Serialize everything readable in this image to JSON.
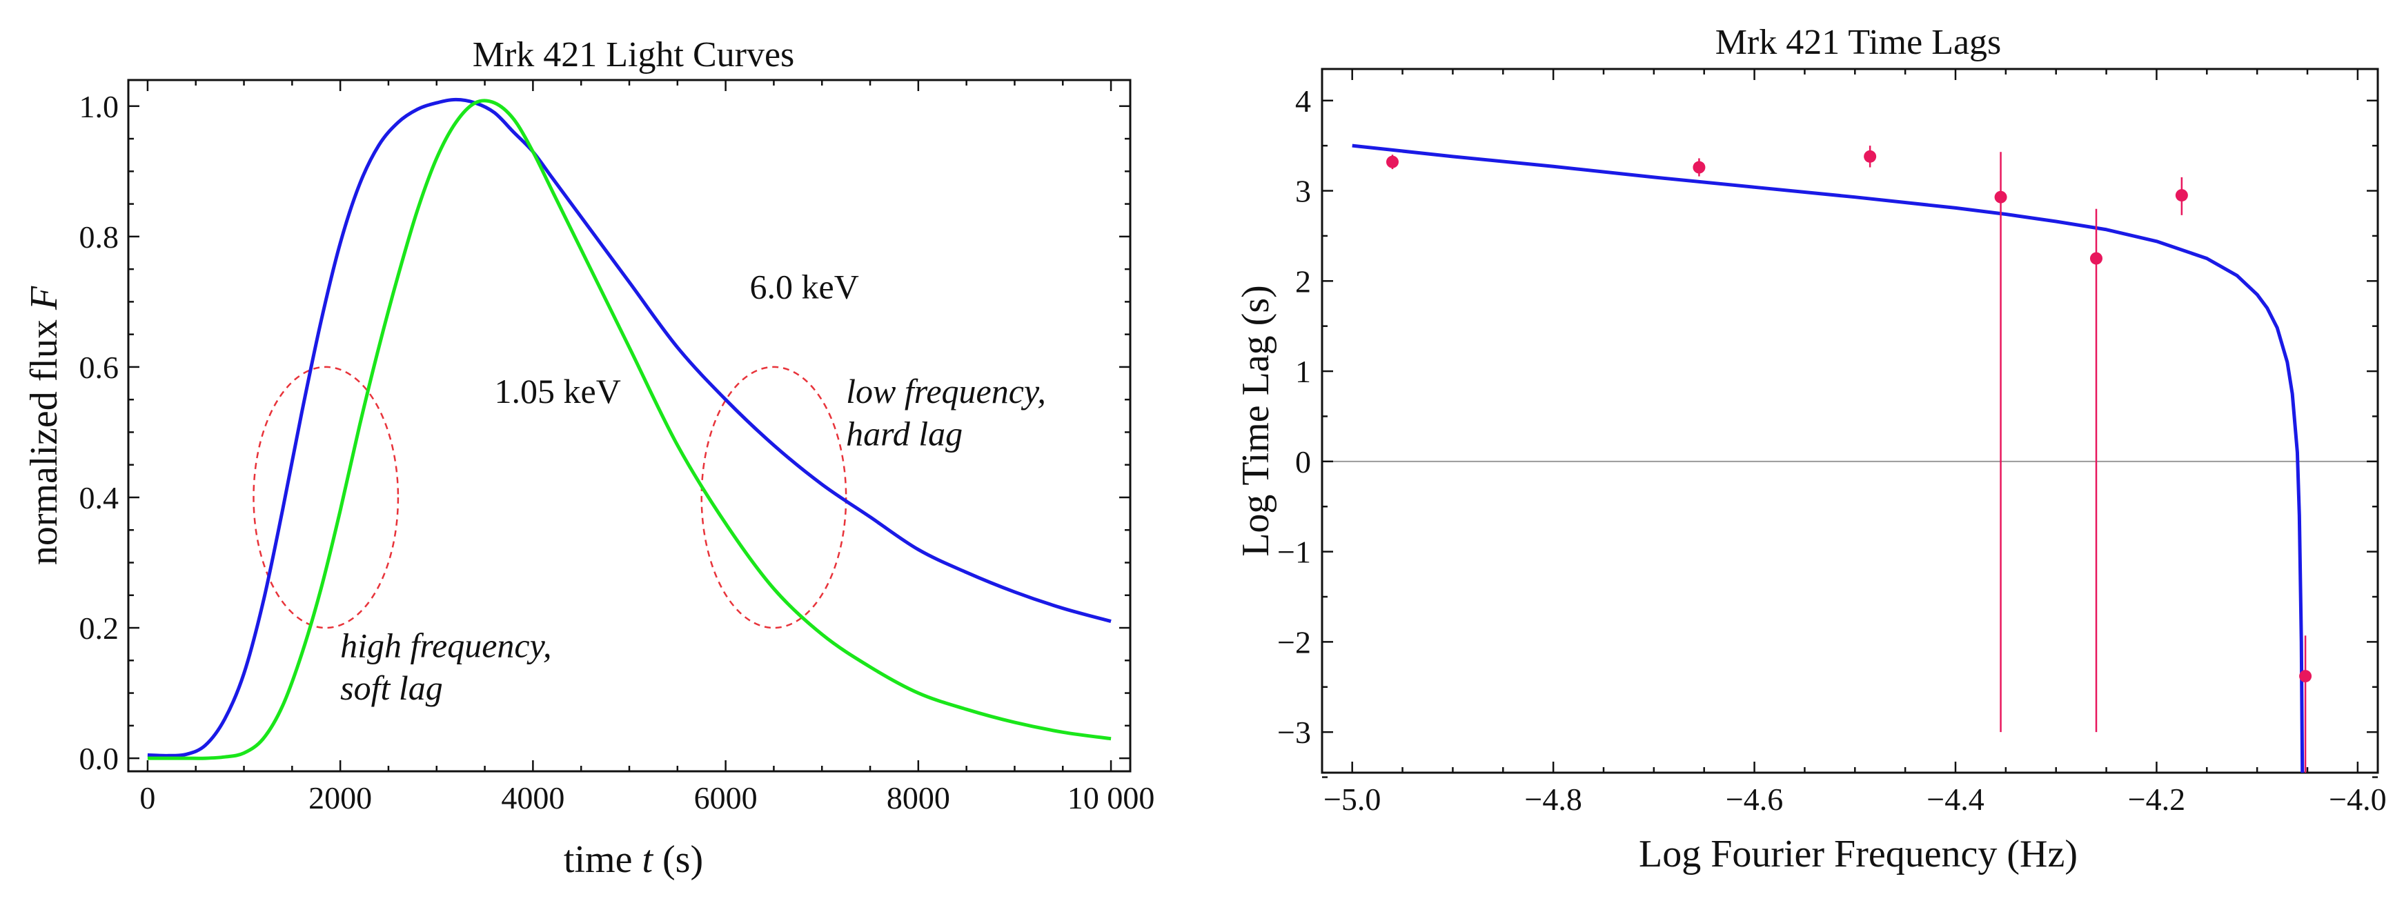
{
  "chart_data": [
    {
      "type": "line",
      "title": "Mrk 421 Light Curves",
      "xlabel_prefix": "time ",
      "xlabel_var": "t",
      "xlabel_suffix": " (s)",
      "ylabel_prefix": "normalized flux ",
      "ylabel_var": "F",
      "xlim": [
        -200,
        10200
      ],
      "ylim": [
        -0.02,
        1.04
      ],
      "x_ticks": [
        {
          "value": 0,
          "label": "0"
        },
        {
          "value": 2000,
          "label": "2000"
        },
        {
          "value": 4000,
          "label": "4000"
        },
        {
          "value": 6000,
          "label": "6000"
        },
        {
          "value": 8000,
          "label": "8000"
        },
        {
          "value": 10000,
          "label": "10 000"
        }
      ],
      "y_ticks": [
        {
          "value": 0.0,
          "label": "0.0"
        },
        {
          "value": 0.2,
          "label": "0.2"
        },
        {
          "value": 0.4,
          "label": "0.4"
        },
        {
          "value": 0.6,
          "label": "0.6"
        },
        {
          "value": 0.8,
          "label": "0.8"
        },
        {
          "value": 1.0,
          "label": "1.0"
        }
      ],
      "series": [
        {
          "name": "6.0 keV",
          "color": "#1a1ae6",
          "x": [
            0,
            200,
            400,
            600,
            800,
            1000,
            1200,
            1400,
            1600,
            1800,
            2000,
            2200,
            2400,
            2600,
            2800,
            3000,
            3200,
            3400,
            3600,
            3800,
            4000,
            4200,
            4500,
            5000,
            5500,
            6000,
            6500,
            7000,
            7500,
            8000,
            8500,
            9000,
            9500,
            10000
          ],
          "y": [
            0.005,
            0.004,
            0.006,
            0.02,
            0.06,
            0.13,
            0.24,
            0.38,
            0.53,
            0.67,
            0.79,
            0.88,
            0.94,
            0.975,
            0.995,
            1.005,
            1.01,
            1.005,
            0.99,
            0.96,
            0.93,
            0.89,
            0.83,
            0.73,
            0.63,
            0.55,
            0.48,
            0.42,
            0.37,
            0.32,
            0.285,
            0.255,
            0.23,
            0.21
          ]
        },
        {
          "name": "1.05 keV",
          "color": "#1ae61a",
          "x": [
            0,
            200,
            400,
            600,
            800,
            1000,
            1200,
            1400,
            1600,
            1800,
            2000,
            2200,
            2400,
            2600,
            2800,
            3000,
            3200,
            3400,
            3600,
            3800,
            4000,
            4200,
            4500,
            5000,
            5500,
            6000,
            6500,
            7000,
            7500,
            8000,
            8500,
            9000,
            9500,
            10000
          ],
          "y": [
            0.0,
            0.0,
            0.0,
            0.0,
            0.002,
            0.008,
            0.03,
            0.08,
            0.16,
            0.26,
            0.38,
            0.51,
            0.63,
            0.74,
            0.84,
            0.92,
            0.975,
            1.005,
            1.005,
            0.98,
            0.93,
            0.87,
            0.78,
            0.63,
            0.48,
            0.36,
            0.26,
            0.19,
            0.14,
            0.1,
            0.075,
            0.055,
            0.04,
            0.03
          ]
        }
      ],
      "ellipses": [
        {
          "cx": 1850,
          "cy": 0.4,
          "rx": 750,
          "ry": 0.2
        },
        {
          "cx": 6500,
          "cy": 0.4,
          "rx": 750,
          "ry": 0.2
        }
      ],
      "annotations": [
        {
          "text": "6.0 keV",
          "x": 6250,
          "y": 0.705,
          "italic": false
        },
        {
          "text": "1.05 keV",
          "x": 3600,
          "y": 0.545,
          "italic": false
        },
        {
          "text": "low frequency,",
          "x": 7250,
          "y": 0.545,
          "italic": true
        },
        {
          "text": "hard lag",
          "x": 7250,
          "y": 0.48,
          "italic": true
        },
        {
          "text": "high frequency,",
          "x": 2000,
          "y": 0.155,
          "italic": true
        },
        {
          "text": "soft lag",
          "x": 2000,
          "y": 0.09,
          "italic": true
        }
      ]
    },
    {
      "type": "scatter",
      "title": "Mrk 421 Time Lags",
      "xlabel": "Log Fourier Frequency (Hz)",
      "ylabel": "Log Time Lag (s)",
      "xlim": [
        -5.03,
        -3.98
      ],
      "ylim": [
        -3.45,
        4.35
      ],
      "x_ticks": [
        {
          "value": -5.0,
          "label": "−5.0"
        },
        {
          "value": -4.8,
          "label": "−4.8"
        },
        {
          "value": -4.6,
          "label": "−4.6"
        },
        {
          "value": -4.4,
          "label": "−4.4"
        },
        {
          "value": -4.2,
          "label": "−4.2"
        },
        {
          "value": -4.0,
          "label": "−4.0"
        }
      ],
      "y_ticks": [
        {
          "value": -3,
          "label": "−3"
        },
        {
          "value": -2,
          "label": "−2"
        },
        {
          "value": -1,
          "label": "−1"
        },
        {
          "value": 0,
          "label": "0"
        },
        {
          "value": 1,
          "label": "1"
        },
        {
          "value": 2,
          "label": "2"
        },
        {
          "value": 3,
          "label": "3"
        },
        {
          "value": 4,
          "label": "4"
        }
      ],
      "model_curve": {
        "color": "#1a1ae6",
        "x": [
          -5.0,
          -4.9,
          -4.8,
          -4.7,
          -4.6,
          -4.5,
          -4.4,
          -4.35,
          -4.3,
          -4.25,
          -4.2,
          -4.15,
          -4.12,
          -4.1,
          -4.09,
          -4.08,
          -4.07,
          -4.065,
          -4.06,
          -4.058,
          -4.056,
          -4.055
        ],
        "y": [
          3.5,
          3.38,
          3.27,
          3.15,
          3.04,
          2.93,
          2.81,
          2.74,
          2.66,
          2.57,
          2.44,
          2.25,
          2.06,
          1.85,
          1.7,
          1.48,
          1.1,
          0.75,
          0.1,
          -0.6,
          -2.0,
          -3.45
        ]
      },
      "data_points": {
        "color": "#e8175d",
        "points": [
          {
            "x": -4.96,
            "y": 3.32,
            "err_lo": 0.08,
            "err_hi": 0.08
          },
          {
            "x": -4.655,
            "y": 3.26,
            "err_lo": 0.1,
            "err_hi": 0.1
          },
          {
            "x": -4.485,
            "y": 3.38,
            "err_lo": 0.12,
            "err_hi": 0.12
          },
          {
            "x": -4.355,
            "y": 2.93,
            "err_lo": 5.93,
            "err_hi": 0.5
          },
          {
            "x": -4.26,
            "y": 2.25,
            "err_lo": 5.25,
            "err_hi": 0.55
          },
          {
            "x": -4.175,
            "y": 2.95,
            "err_lo": 0.22,
            "err_hi": 0.2
          },
          {
            "x": -4.052,
            "y": -2.38,
            "err_lo": 1.07,
            "err_hi": 0.45
          }
        ]
      },
      "reference_line_y": 0
    }
  ]
}
